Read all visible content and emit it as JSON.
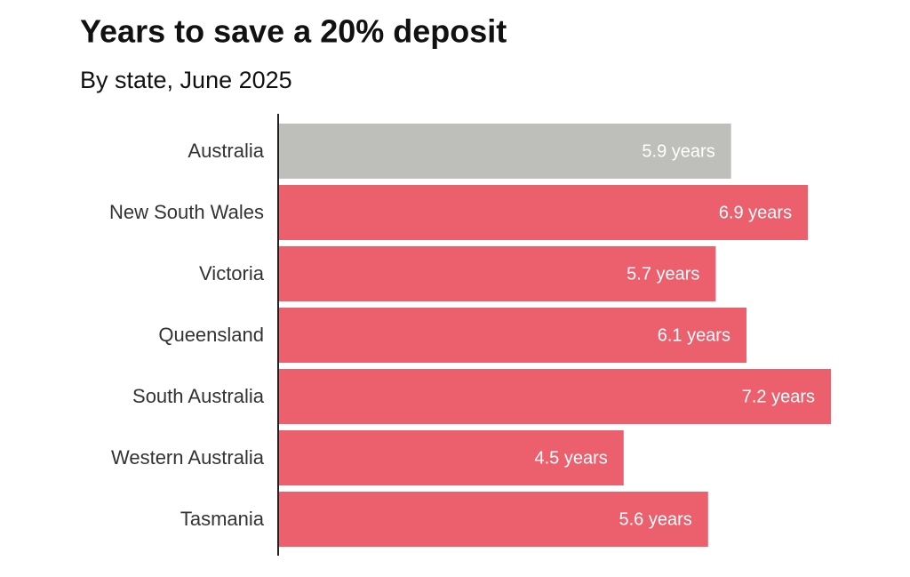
{
  "chart_data": {
    "type": "bar",
    "orientation": "horizontal",
    "title": "Years to save a 20% deposit",
    "subtitle": "By state, June 2025",
    "categories": [
      "Australia",
      "New South Wales",
      "Victoria",
      "Queensland",
      "South Australia",
      "Western Australia",
      "Tasmania"
    ],
    "values": [
      5.9,
      6.9,
      5.7,
      6.1,
      7.2,
      4.5,
      5.6
    ],
    "value_labels": [
      "5.9 years",
      "6.9 years",
      "5.7 years",
      "6.1 years",
      "7.2 years",
      "4.5 years",
      "5.6 years"
    ],
    "colors": [
      "#bebebb",
      "#ec5f6d",
      "#ec5f6d",
      "#ec5f6d",
      "#ec5f6d",
      "#ec5f6d",
      "#ec5f6d"
    ]
  }
}
